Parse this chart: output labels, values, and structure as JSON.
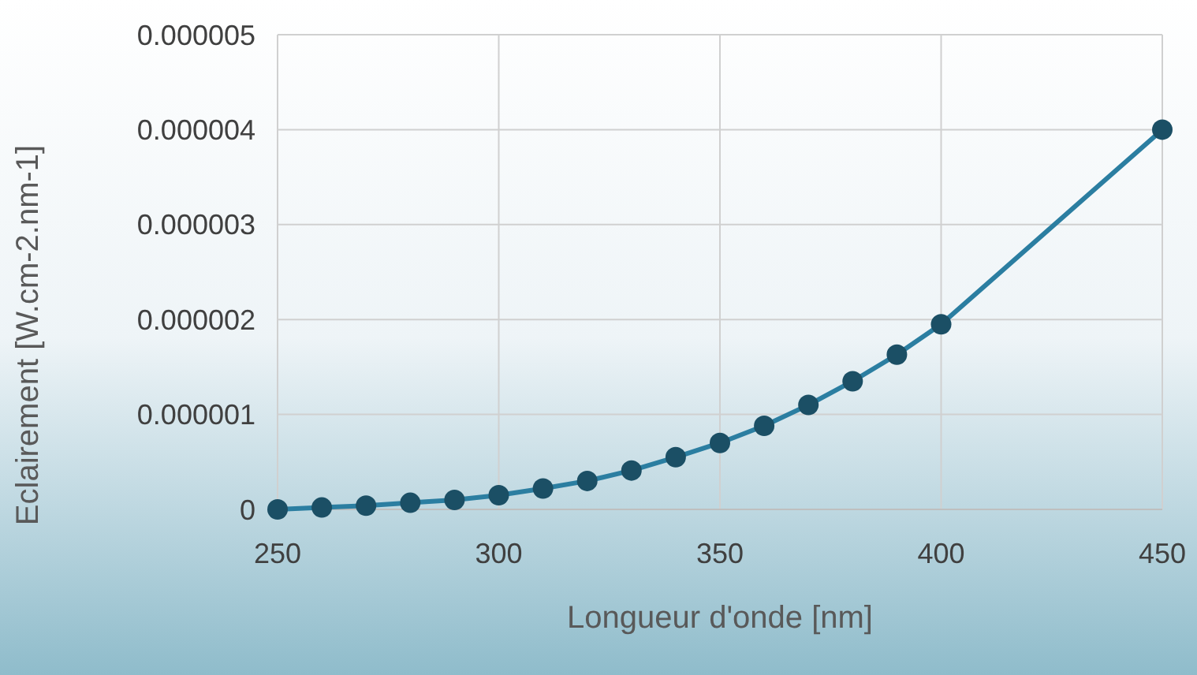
{
  "chart_data": {
    "type": "line",
    "xlabel": "Longueur d'onde [nm]",
    "ylabel": "Eclairement [W.cm-2.nm-1]",
    "x": [
      250,
      260,
      270,
      280,
      290,
      300,
      310,
      320,
      330,
      340,
      350,
      360,
      370,
      380,
      390,
      400,
      450
    ],
    "series": [
      {
        "color": "#2b7ea1",
        "values": [
          0,
          2e-08,
          4e-08,
          7e-08,
          1e-07,
          1.5e-07,
          2.2e-07,
          3e-07,
          4.1e-07,
          5.5e-07,
          7e-07,
          8.8e-07,
          1.1e-06,
          1.35e-06,
          1.63e-06,
          1.95e-06,
          4e-06
        ]
      }
    ],
    "xlim": [
      250,
      450
    ],
    "xticks": [
      250,
      300,
      350,
      400,
      450
    ],
    "ylim": [
      0,
      5e-06
    ],
    "yticks": [
      0,
      {
        "value": 1e-06,
        "label": "0.000001"
      },
      {
        "value": 2e-06,
        "label": "0.000002"
      },
      {
        "value": 3e-06,
        "label": "0.000003"
      },
      {
        "value": 4e-06,
        "label": "0.000004"
      },
      {
        "value": 5e-06,
        "label": "0.000005"
      }
    ],
    "grid": true,
    "marker": "circle",
    "line_style": "solid"
  }
}
